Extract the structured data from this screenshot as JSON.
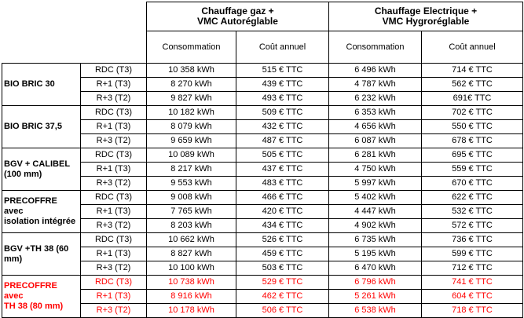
{
  "header": {
    "groups": [
      "Chauffage gaz +\nVMC Autoréglable",
      "Chauffage Electrique +\nVMC Hygroréglable"
    ],
    "subcolumns": [
      "Consommation",
      "Coût annuel",
      "Consommation",
      "Coût annuel"
    ]
  },
  "products": [
    {
      "name": "BIO BRIC 30",
      "highlight": false,
      "rows": [
        {
          "floor": "RDC (T3)",
          "gas_kwh": "10 358 kWh",
          "gas_cost": "515 € TTC",
          "elec_kwh": "6 496 kWh",
          "elec_cost": "714 € TTC"
        },
        {
          "floor": "R+1 (T3)",
          "gas_kwh": "8 270 kWh",
          "gas_cost": "439 € TTC",
          "elec_kwh": "4 787 kWh",
          "elec_cost": "562 € TTC"
        },
        {
          "floor": "R+3 (T2)",
          "gas_kwh": "9 827 kWh",
          "gas_cost": "493 € TTC",
          "elec_kwh": "6 232 kWh",
          "elec_cost": "691€ TTC"
        }
      ]
    },
    {
      "name": "BIO BRIC 37,5",
      "highlight": false,
      "rows": [
        {
          "floor": "RDC (T3)",
          "gas_kwh": "10 182 kWh",
          "gas_cost": "509 € TTC",
          "elec_kwh": "6 353 kWh",
          "elec_cost": "702 € TTC"
        },
        {
          "floor": "R+1 (T3)",
          "gas_kwh": "8 079 kWh",
          "gas_cost": "432 € TTC",
          "elec_kwh": "4 656 kWh",
          "elec_cost": "550 € TTC"
        },
        {
          "floor": "R+3 (T2)",
          "gas_kwh": "9 659 kWh",
          "gas_cost": "487 € TTC",
          "elec_kwh": "6 087 kWh",
          "elec_cost": "678 € TTC"
        }
      ]
    },
    {
      "name": "BGV + CALIBEL\n(100 mm)",
      "highlight": false,
      "rows": [
        {
          "floor": "RDC (T3)",
          "gas_kwh": "10 089 kWh",
          "gas_cost": "505 € TTC",
          "elec_kwh": "6 281 kWh",
          "elec_cost": "695 € TTC"
        },
        {
          "floor": "R+1 (T3)",
          "gas_kwh": "8 217 kWh",
          "gas_cost": "437 € TTC",
          "elec_kwh": "4 750 kWh",
          "elec_cost": "559 € TTC"
        },
        {
          "floor": "R+3 (T2)",
          "gas_kwh": "9 553 kWh",
          "gas_cost": "483 € TTC",
          "elec_kwh": "5 997 kWh",
          "elec_cost": "670 € TTC"
        }
      ]
    },
    {
      "name": "PRECOFFRE avec\nisolation intégrée",
      "highlight": false,
      "rows": [
        {
          "floor": "RDC (T3)",
          "gas_kwh": "9 008 kWh",
          "gas_cost": "466 € TTC",
          "elec_kwh": "5 402 kWh",
          "elec_cost": "622 € TTC"
        },
        {
          "floor": "R+1 (T3)",
          "gas_kwh": "7 765 kWh",
          "gas_cost": "420 € TTC",
          "elec_kwh": "4 447 kWh",
          "elec_cost": "532 € TTC"
        },
        {
          "floor": "R+3 (T2)",
          "gas_kwh": "8 203 kWh",
          "gas_cost": "434 € TTC",
          "elec_kwh": "4 902 kWh",
          "elec_cost": "572 € TTC"
        }
      ]
    },
    {
      "name": "BGV +TH 38 (60\nmm)",
      "highlight": false,
      "rows": [
        {
          "floor": "RDC (T3)",
          "gas_kwh": "10 662 kWh",
          "gas_cost": "526 € TTC",
          "elec_kwh": "6 735 kWh",
          "elec_cost": "736 € TTC"
        },
        {
          "floor": "R+1 (T3)",
          "gas_kwh": "8 827 kWh",
          "gas_cost": "459 € TTC",
          "elec_kwh": "5 195 kWh",
          "elec_cost": "599 € TTC"
        },
        {
          "floor": "R+3 (T2)",
          "gas_kwh": "10 100 kWh",
          "gas_cost": "503 € TTC",
          "elec_kwh": "6 470 kWh",
          "elec_cost": "712 € TTC"
        }
      ]
    },
    {
      "name": "PRECOFFRE avec\nTH 38  (80 mm)",
      "highlight": true,
      "rows": [
        {
          "floor": "RDC (T3)",
          "gas_kwh": "10 738 kWh",
          "gas_cost": "529 € TTC",
          "elec_kwh": "6 796 kWh",
          "elec_cost": "741 € TTC"
        },
        {
          "floor": "R+1 (T3)",
          "gas_kwh": "8 916 kWh",
          "gas_cost": "462 € TTC",
          "elec_kwh": "5 261 kWh",
          "elec_cost": "604 € TTC"
        },
        {
          "floor": "R+3 (T2)",
          "gas_kwh": "10 178 kWh",
          "gas_cost": "506 € TTC",
          "elec_kwh": "6 538 kWh",
          "elec_cost": "718 € TTC"
        }
      ]
    }
  ],
  "colors": {
    "text": "#000000",
    "highlight": "#ff0000",
    "border": "#000000",
    "background": "#ffffff"
  }
}
